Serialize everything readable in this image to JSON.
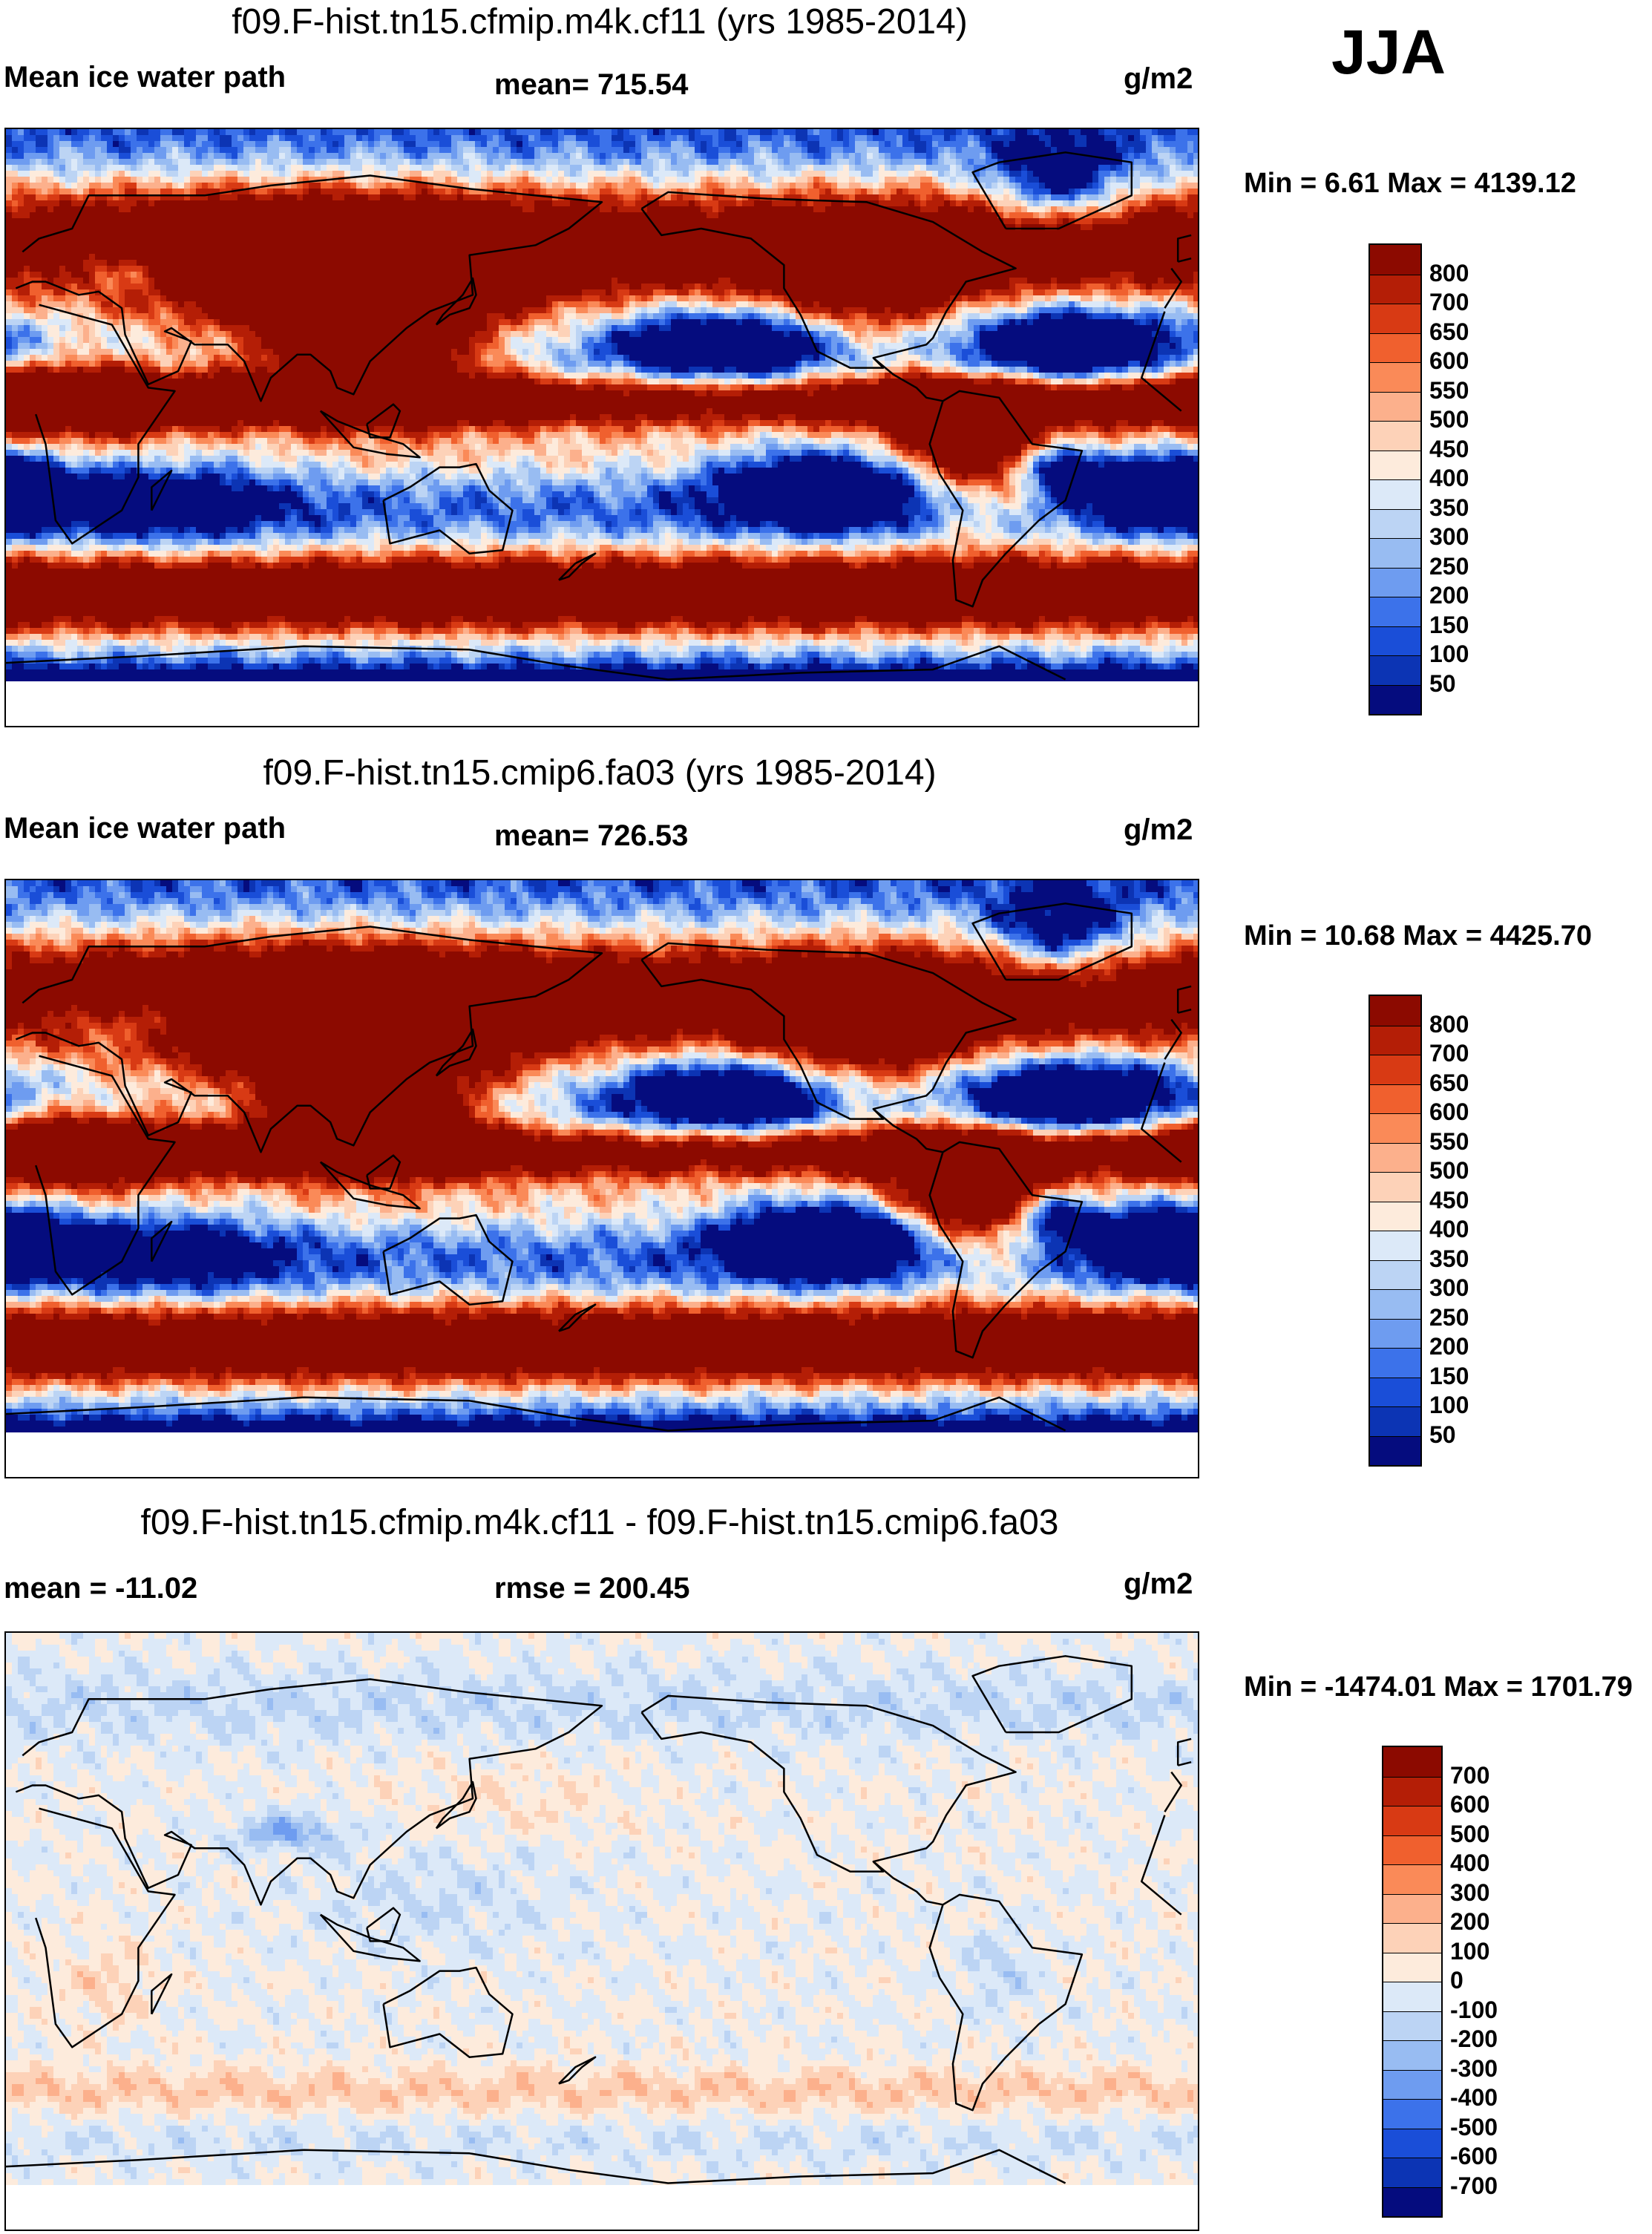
{
  "season": "JJA",
  "units": "g/m2",
  "panels": [
    {
      "title": "f09.F-hist.tn15.cfmip.m4k.cf11 (yrs 1985-2014)",
      "left_label": "Mean ice water path",
      "center_label": "mean= 715.54",
      "minmax": "Min =   6.61 Max = 4139.12",
      "kind": "abs"
    },
    {
      "title": "f09.F-hist.tn15.cmip6.fa03 (yrs 1985-2014)",
      "left_label": "Mean ice water path",
      "center_label": "mean= 726.53",
      "minmax": "Min =  10.68 Max = 4425.70",
      "kind": "abs"
    },
    {
      "title": "f09.F-hist.tn15.cfmip.m4k.cf11 - f09.F-hist.tn15.cmip6.fa03",
      "left_label": "mean = -11.02",
      "center_label": "rmse = 200.45",
      "minmax": "Min = -1474.01 Max = 1701.79",
      "kind": "diff"
    }
  ],
  "colorbars": {
    "abs": {
      "labels": [
        "800",
        "700",
        "650",
        "600",
        "550",
        "500",
        "450",
        "400",
        "350",
        "300",
        "250",
        "200",
        "150",
        "100",
        "50"
      ],
      "colors": [
        "#8c0a00",
        "#b41e06",
        "#d83a14",
        "#f0602e",
        "#fa8a58",
        "#fcb08c",
        "#fdd2b8",
        "#fdebdc",
        "#dce9f8",
        "#bcd4f4",
        "#98bcf2",
        "#6e9cf0",
        "#3c72ea",
        "#1a4ed8",
        "#0c34b4",
        "#050c7e"
      ]
    },
    "diff": {
      "labels": [
        "700",
        "600",
        "500",
        "400",
        "300",
        "200",
        "100",
        "0",
        "-100",
        "-200",
        "-300",
        "-400",
        "-500",
        "-600",
        "-700"
      ],
      "colors": [
        "#8c0a00",
        "#b41e06",
        "#d83a14",
        "#f0602e",
        "#fa8a58",
        "#fcb08c",
        "#fdd2b8",
        "#fdebdc",
        "#dce9f8",
        "#bcd4f4",
        "#98bcf2",
        "#6e9cf0",
        "#3c72ea",
        "#1a4ed8",
        "#0c34b4",
        "#050c7e"
      ]
    }
  },
  "chart_data": [
    {
      "type": "heatmap",
      "title": "f09.F-hist.tn15.cfmip.m4k.cf11 (yrs 1985-2014)",
      "variable": "Mean ice water path",
      "units": "g/m2",
      "mean": 715.54,
      "min": 6.61,
      "max": 4139.12,
      "levels": [
        50,
        100,
        150,
        200,
        250,
        300,
        350,
        400,
        450,
        500,
        550,
        600,
        650,
        700,
        800
      ]
    },
    {
      "type": "heatmap",
      "title": "f09.F-hist.tn15.cmip6.fa03 (yrs 1985-2014)",
      "variable": "Mean ice water path",
      "units": "g/m2",
      "mean": 726.53,
      "min": 10.68,
      "max": 4425.7,
      "levels": [
        50,
        100,
        150,
        200,
        250,
        300,
        350,
        400,
        450,
        500,
        550,
        600,
        650,
        700,
        800
      ]
    },
    {
      "type": "heatmap",
      "title": "f09.F-hist.tn15.cfmip.m4k.cf11 - f09.F-hist.tn15.cmip6.fa03",
      "units": "g/m2",
      "mean": -11.02,
      "rmse": 200.45,
      "min": -1474.01,
      "max": 1701.79,
      "levels": [
        -700,
        -600,
        -500,
        -400,
        -300,
        -200,
        -100,
        0,
        100,
        200,
        300,
        400,
        500,
        600,
        700
      ]
    }
  ]
}
